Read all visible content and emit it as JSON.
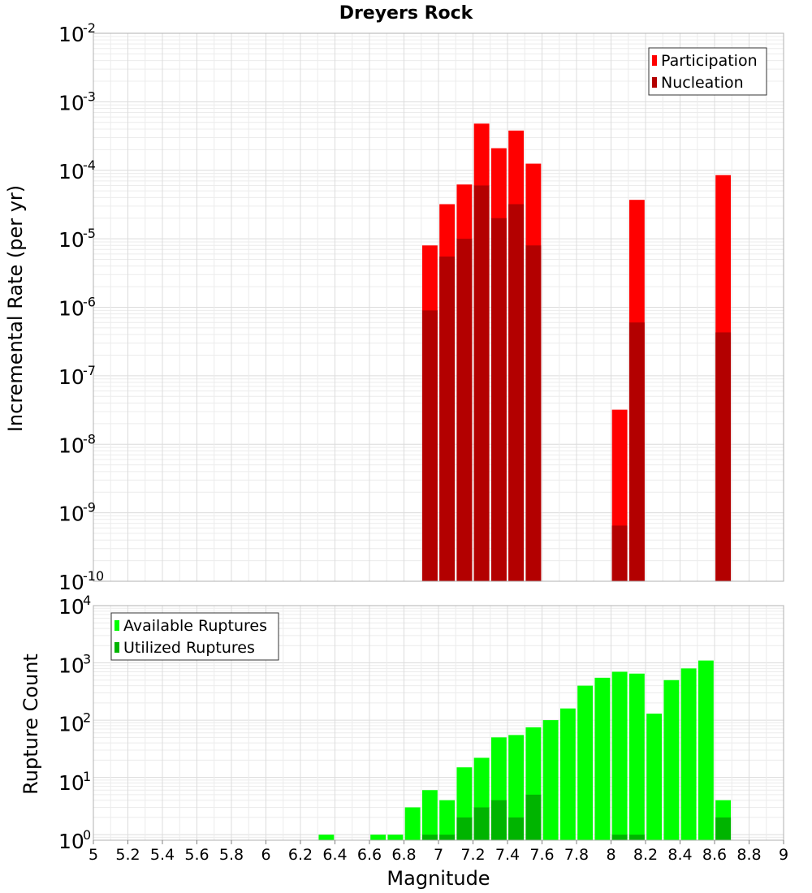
{
  "chart_data": [
    {
      "type": "bar",
      "title": "Dreyers Rock",
      "xlabel": "",
      "ylabel": "Incremental Rate (per yr)",
      "yscale": "log",
      "ylim": [
        1e-10,
        0.01
      ],
      "xlim": [
        5,
        9
      ],
      "bin_width": 0.1,
      "legend": "top-right",
      "grid": true,
      "series": [
        {
          "name": "Participation",
          "color": "#ff0000",
          "x": [
            6.95,
            7.05,
            7.15,
            7.25,
            7.35,
            7.45,
            7.55,
            8.05,
            8.15,
            8.65
          ],
          "values": [
            8e-06,
            3.2e-05,
            6.2e-05,
            0.00048,
            0.00021,
            0.00038,
            0.000125,
            3.2e-08,
            3.7e-05,
            8.5e-05
          ]
        },
        {
          "name": "Nucleation",
          "color": "#b30000",
          "x": [
            6.95,
            7.05,
            7.15,
            7.25,
            7.35,
            7.45,
            7.55,
            8.05,
            8.15,
            8.65
          ],
          "values": [
            9e-07,
            5.5e-06,
            1e-05,
            6e-05,
            2e-05,
            3.2e-05,
            8e-06,
            6.5e-10,
            6e-07,
            4.3e-07
          ]
        }
      ]
    },
    {
      "type": "bar",
      "title": "",
      "xlabel": "Magnitude",
      "ylabel": "Rupture Count",
      "yscale": "log",
      "ylim": [
        0.8,
        10000
      ],
      "xlim": [
        5,
        9
      ],
      "bin_width": 0.1,
      "legend": "top-left",
      "grid": true,
      "series": [
        {
          "name": "Available Ruptures",
          "color": "#00ff00",
          "x": [
            6.35,
            6.65,
            6.75,
            6.85,
            6.95,
            7.05,
            7.15,
            7.25,
            7.35,
            7.45,
            7.55,
            7.65,
            7.75,
            7.85,
            7.95,
            8.05,
            8.15,
            8.25,
            8.35,
            8.45,
            8.55,
            8.65
          ],
          "values": [
            1,
            1,
            1,
            3,
            6,
            4,
            15,
            22,
            50,
            55,
            75,
            100,
            160,
            400,
            550,
            700,
            650,
            130,
            500,
            800,
            1100,
            4
          ]
        },
        {
          "name": "Utilized Ruptures",
          "color": "#00b400",
          "x": [
            6.95,
            7.05,
            7.15,
            7.25,
            7.35,
            7.45,
            7.55,
            8.05,
            8.15,
            8.65
          ],
          "values": [
            1,
            1,
            2,
            3,
            4,
            2,
            5,
            1,
            1,
            2
          ]
        }
      ]
    }
  ],
  "x_ticks": [
    "5",
    "5.2",
    "5.4",
    "5.6",
    "5.8",
    "6",
    "6.2",
    "6.4",
    "6.6",
    "6.8",
    "7",
    "7.2",
    "7.4",
    "7.6",
    "7.8",
    "8",
    "8.2",
    "8.4",
    "8.6",
    "8.8",
    "9"
  ],
  "top_y_exponents": [
    "-2",
    "-3",
    "-4",
    "-5",
    "-6",
    "-7",
    "-8",
    "-9",
    "-10"
  ],
  "bottom_y_exponents": [
    "4",
    "3",
    "2",
    "1",
    "0"
  ]
}
